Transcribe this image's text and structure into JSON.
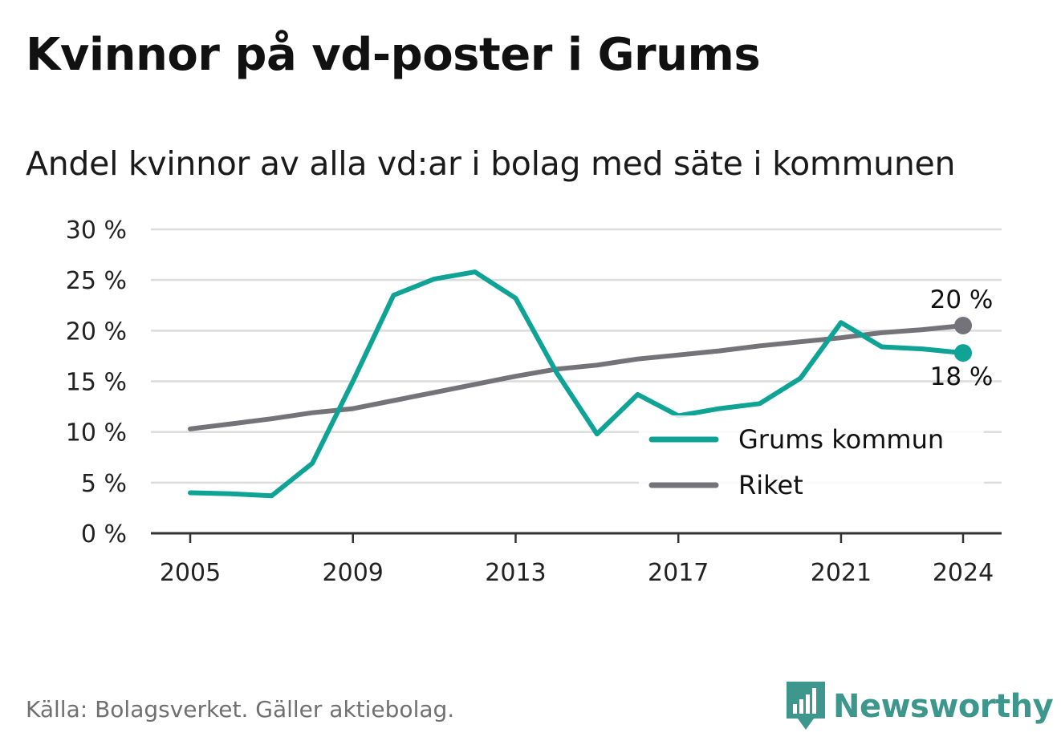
{
  "header": {
    "title": "Kvinnor på vd-poster i Grums",
    "subtitle": "Andel kvinnor av alla vd:ar i bolag med säte i kommunen"
  },
  "footer": {
    "source": "Källa: Bolagsverket. Gäller aktiebolag.",
    "brand": "Newsworthy"
  },
  "colors": {
    "grums": "#0fa396",
    "riket": "#75737a",
    "grid": "#dcdcdc",
    "axis": "#333333",
    "brand": "#3e978d"
  },
  "chart_data": {
    "type": "line",
    "x": [
      2005,
      2006,
      2007,
      2008,
      2009,
      2010,
      2011,
      2012,
      2013,
      2014,
      2015,
      2016,
      2017,
      2018,
      2019,
      2020,
      2021,
      2022,
      2023,
      2024
    ],
    "x_ticks": [
      "2005",
      "2009",
      "2013",
      "2017",
      "2021",
      "2024"
    ],
    "y_ticks": [
      "0 %",
      "5 %",
      "10 %",
      "15 %",
      "20 %",
      "25 %",
      "30 %"
    ],
    "ylim": [
      0,
      30
    ],
    "grid": true,
    "legend_position": "bottom-right",
    "series": [
      {
        "name": "Grums kommun",
        "color": "#0fa396",
        "values": [
          4.0,
          3.9,
          3.7,
          6.9,
          15.0,
          23.5,
          25.1,
          25.8,
          23.2,
          15.9,
          9.8,
          13.7,
          11.6,
          12.3,
          12.8,
          15.3,
          20.8,
          18.4,
          18.2,
          17.8
        ],
        "end_label": "18 %"
      },
      {
        "name": "Riket",
        "color": "#75737a",
        "values": [
          10.3,
          10.8,
          11.3,
          11.9,
          12.3,
          13.1,
          13.9,
          14.7,
          15.5,
          16.2,
          16.6,
          17.2,
          17.6,
          18.0,
          18.5,
          18.9,
          19.3,
          19.8,
          20.1,
          20.5
        ],
        "end_label": "20 %"
      }
    ]
  }
}
